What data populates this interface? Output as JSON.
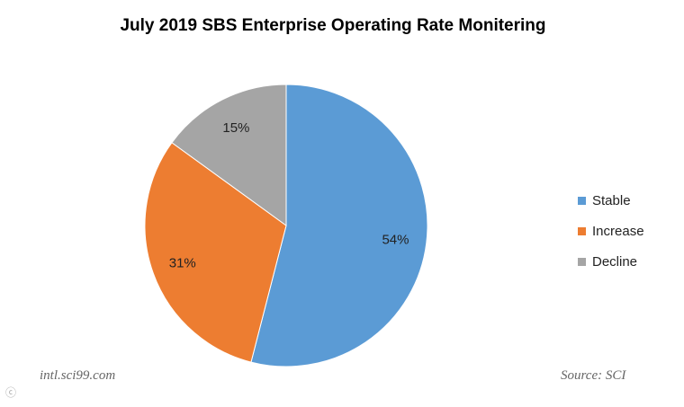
{
  "chart_data": {
    "type": "pie",
    "title": "July 2019 SBS Enterprise Operating Rate Monitering",
    "categories": [
      "Stable",
      "Increase",
      "Decline"
    ],
    "values": [
      54,
      31,
      15
    ],
    "value_labels": [
      "54%",
      "31%",
      "15%"
    ],
    "colors": [
      "#5b9bd5",
      "#ed7d31",
      "#a5a5a5"
    ],
    "legend_position": "right"
  },
  "footer": {
    "website": "intl.sci99.com",
    "source": "Source: SCI"
  }
}
